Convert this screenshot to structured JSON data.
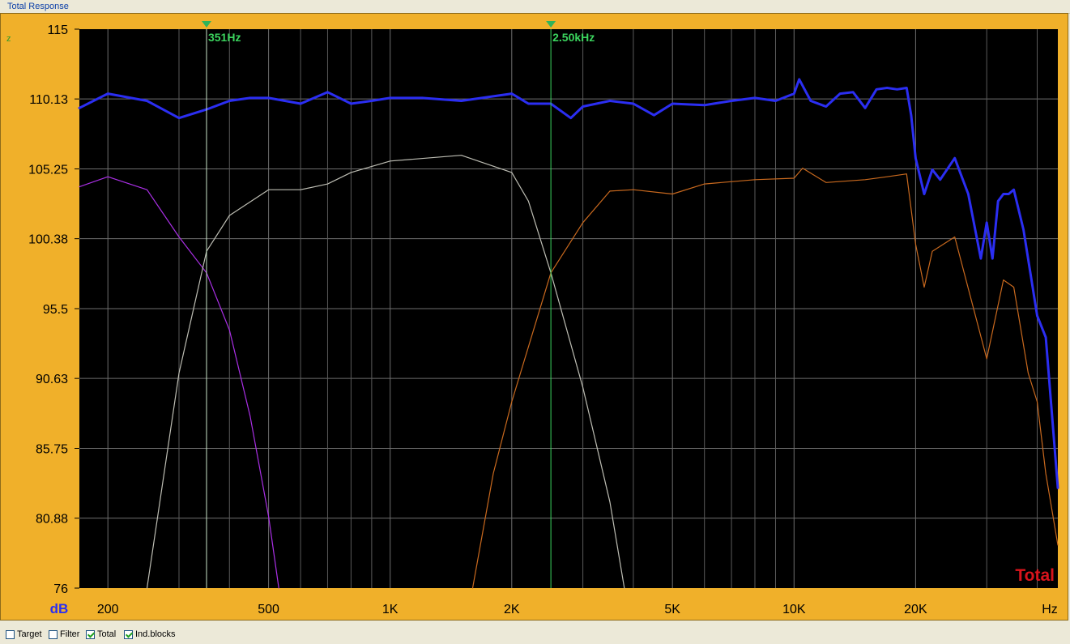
{
  "window": {
    "title": "Total Response"
  },
  "chart_data": {
    "type": "line",
    "xscale": "log",
    "xlim": [
      170,
      45000
    ],
    "ylim": [
      76,
      115
    ],
    "y_ticks": [
      "115",
      "110.13",
      "105.25",
      "100.38",
      "95.5",
      "90.63",
      "85.75",
      "80.88",
      "76"
    ],
    "x_ticks": [
      "200",
      "500",
      "1K",
      "2K",
      "5K",
      "10K",
      "20K",
      "Hz"
    ],
    "y_unit": "dB",
    "axis_stub_label": "z",
    "plot_label": "Total",
    "markers": [
      {
        "freq": 351,
        "label": "351Hz"
      },
      {
        "freq": 2500,
        "label": "2.50kHz"
      }
    ],
    "series": [
      {
        "color": "#aa2fe6",
        "x": [
          170,
          200,
          250,
          300,
          351,
          400,
          450,
          500,
          530
        ],
        "y": [
          104.0,
          104.7,
          103.8,
          100.5,
          98.0,
          94.0,
          88.0,
          81.0,
          76.0
        ]
      },
      {
        "color": "#bdbdb3",
        "x": [
          250,
          300,
          351,
          400,
          500,
          600,
          700,
          800,
          1000,
          1500,
          2000,
          2200,
          2500,
          3000,
          3500,
          3800
        ],
        "y": [
          76.0,
          91.0,
          99.5,
          102.0,
          103.8,
          103.8,
          104.2,
          105.0,
          105.8,
          106.2,
          105.0,
          103.0,
          98.0,
          90.0,
          82.0,
          76.0
        ]
      },
      {
        "color": "#c9691e",
        "x": [
          1600,
          1800,
          2000,
          2500,
          3000,
          3500,
          4000,
          5000,
          6000,
          8000,
          10000,
          10500,
          12000,
          15000,
          17000,
          19000,
          20000,
          21000,
          22000,
          25000,
          30000,
          33000,
          35000,
          38000,
          40000,
          42000,
          45000
        ],
        "y": [
          76.0,
          84.0,
          89.0,
          98.0,
          101.5,
          103.7,
          103.8,
          103.5,
          104.2,
          104.5,
          104.6,
          105.3,
          104.3,
          104.5,
          104.7,
          104.9,
          100.0,
          97.0,
          99.5,
          100.5,
          92.0,
          97.5,
          97.0,
          91.0,
          89.0,
          84.0,
          79.0
        ]
      },
      {
        "color": "#2b2ef2",
        "width": 3,
        "x": [
          170,
          200,
          250,
          300,
          351,
          400,
          450,
          500,
          600,
          700,
          800,
          900,
          1000,
          1200,
          1500,
          2000,
          2200,
          2500,
          2800,
          3000,
          3500,
          4000,
          4500,
          5000,
          6000,
          7000,
          8000,
          9000,
          10000,
          10300,
          11000,
          12000,
          13000,
          14000,
          15000,
          16000,
          17000,
          18000,
          19000,
          19500,
          20000,
          21000,
          22000,
          23000,
          25000,
          27000,
          29000,
          30000,
          31000,
          32000,
          33000,
          34000,
          35000,
          37000,
          40000,
          42000,
          45000
        ],
        "y": [
          109.5,
          110.5,
          110.0,
          108.8,
          109.4,
          110.0,
          110.2,
          110.2,
          109.8,
          110.6,
          109.8,
          110.0,
          110.2,
          110.2,
          110.0,
          110.5,
          109.8,
          109.8,
          108.8,
          109.6,
          110.0,
          109.8,
          109.0,
          109.8,
          109.7,
          110.0,
          110.2,
          110.0,
          110.5,
          111.5,
          110.0,
          109.6,
          110.5,
          110.6,
          109.5,
          110.8,
          110.9,
          110.8,
          110.9,
          109.0,
          106.0,
          103.5,
          105.2,
          104.5,
          106.0,
          103.5,
          99.0,
          101.5,
          99.0,
          103.0,
          103.5,
          103.5,
          103.8,
          101.0,
          95.0,
          93.5,
          83.0
        ]
      }
    ]
  },
  "checkboxes": [
    {
      "label": "Target",
      "checked": false
    },
    {
      "label": "Filter",
      "checked": false
    },
    {
      "label": "Total",
      "checked": true
    },
    {
      "label": "Ind.blocks",
      "checked": true
    }
  ]
}
